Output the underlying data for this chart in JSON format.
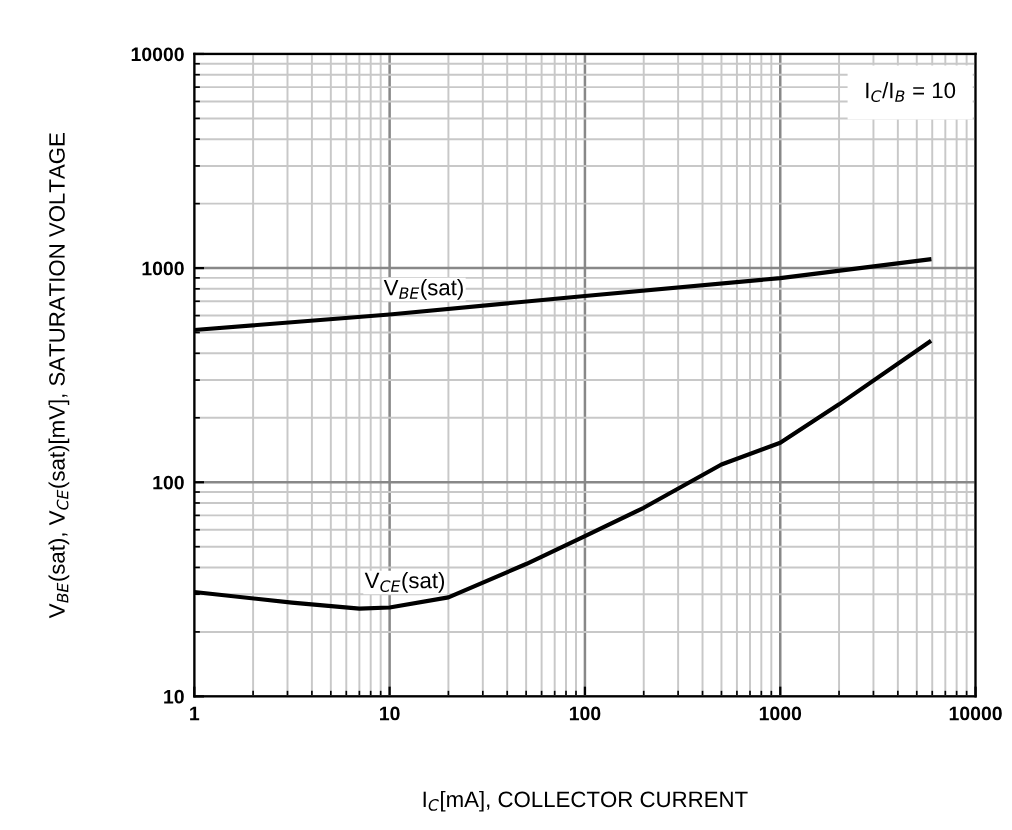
{
  "chart_data": {
    "type": "line",
    "xlabel": "I$_{C}$[mA], COLLECTOR CURRENT",
    "ylabel": "V$_{BE}$(sat), V$_{CE}$(sat)[mV], SATURATION VOLTAGE",
    "log": "xy",
    "grid": true,
    "marker": "none",
    "line_style": "solid",
    "legend": false,
    "xlim": [
      1,
      10000
    ],
    "xticks": [
      1,
      10,
      100,
      1000,
      10000
    ],
    "ylim": [
      10,
      10000
    ],
    "yticks": [
      10,
      100,
      1000,
      10000
    ],
    "series": [
      {
        "color": "#000000",
        "x": [
          1,
          10,
          100,
          1000,
          5800
        ],
        "values": [
          514,
          607,
          741,
          898,
          1098
        ]
      },
      {
        "color": "#000000",
        "x": [
          1,
          3.16,
          7,
          10,
          20,
          50,
          100,
          200,
          500,
          1000,
          2000,
          5800
        ],
        "values": [
          30.7,
          27.4,
          25.7,
          26,
          29,
          41.5,
          56,
          76,
          121,
          153,
          231,
          452
        ]
      }
    ],
    "annotations": [
      {
        "text": "V$_{BE}$(sat)",
        "x": 15,
        "y": 630
      },
      {
        "text": "V$_{CE}$(sat)",
        "x": 12,
        "y": 27
      },
      "I$_{C}$/I$_{B}$ = 10"
    ]
  }
}
